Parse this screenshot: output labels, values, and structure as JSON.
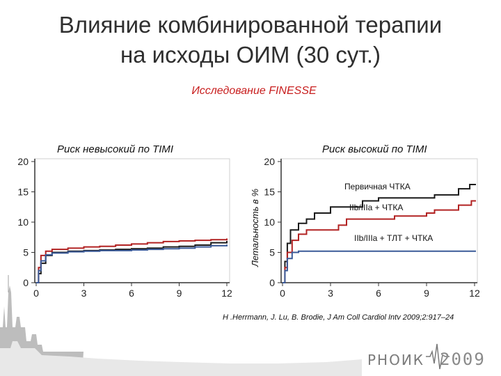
{
  "slide": {
    "title_line1": "Влияние комбинированной терапии",
    "title_line2": "на исходы ОИМ (30 сут.)",
    "subtitle": "Исследование FINESSE",
    "citation": "H .Herrmann, J. Lu, B. Brodie, J Am Coll Cardiol Intv 2009;2:917–24",
    "brand_text": "РНОИК",
    "brand_year": "2009"
  },
  "chart_data": [
    {
      "type": "line",
      "title": "Риск невысокий по TIMI",
      "xlabel": "",
      "ylabel": "",
      "xlim": [
        0,
        12
      ],
      "ylim": [
        0,
        20
      ],
      "xticks": [
        0,
        3,
        6,
        9,
        12
      ],
      "yticks": [
        0,
        5,
        10,
        15,
        20
      ],
      "series": [
        {
          "color": "#1a1a1a",
          "step": true,
          "x": [
            0,
            0.15,
            0.3,
            0.6,
            1,
            2,
            3,
            4,
            5,
            6,
            7,
            8,
            9,
            10,
            11,
            12
          ],
          "y": [
            0,
            1.5,
            3.2,
            4.5,
            5.0,
            5.2,
            5.3,
            5.4,
            5.5,
            5.6,
            5.7,
            5.9,
            6.0,
            6.2,
            6.6,
            6.9
          ]
        },
        {
          "color": "#b22222",
          "step": true,
          "x": [
            0,
            0.15,
            0.3,
            0.6,
            1,
            2,
            3,
            4,
            5,
            6,
            7,
            8,
            9,
            10,
            11,
            12
          ],
          "y": [
            0,
            2.5,
            4.5,
            5.2,
            5.5,
            5.7,
            5.9,
            6.0,
            6.2,
            6.4,
            6.6,
            6.8,
            6.9,
            7.0,
            7.1,
            7.3
          ]
        },
        {
          "color": "#3a5a98",
          "step": true,
          "x": [
            0,
            0.15,
            0.3,
            0.6,
            1,
            2,
            3,
            4,
            5,
            6,
            7,
            8,
            9,
            10,
            11,
            12
          ],
          "y": [
            0,
            2.0,
            3.6,
            4.6,
            4.9,
            5.1,
            5.2,
            5.3,
            5.3,
            5.4,
            5.5,
            5.6,
            5.7,
            5.9,
            6.1,
            6.3
          ]
        }
      ]
    },
    {
      "type": "line",
      "title": "Риск высокий по TIMI",
      "xlabel": "",
      "ylabel": "Летальность в %",
      "xlim": [
        0,
        12
      ],
      "ylim": [
        0,
        20
      ],
      "xticks": [
        0,
        3,
        6,
        9,
        12
      ],
      "yticks": [
        0,
        5,
        10,
        15,
        20
      ],
      "series": [
        {
          "name": "Первичная ЧТКА",
          "color": "#1a1a1a",
          "step": true,
          "x": [
            0,
            0.15,
            0.3,
            0.5,
            1,
            1.5,
            2,
            3,
            4.7,
            5,
            6,
            9.2,
            9.5,
            10.5,
            11,
            11.7,
            12.2
          ],
          "y": [
            0,
            3.5,
            6.5,
            8.7,
            9.8,
            10.5,
            11.5,
            12.5,
            12.5,
            13.5,
            14.0,
            14.0,
            14.5,
            14.5,
            15.5,
            16.2,
            16.2
          ]
        },
        {
          "name": "IIb/IIIa + ЧТКА",
          "color": "#b22222",
          "step": true,
          "x": [
            0,
            0.15,
            0.3,
            0.6,
            1,
            1.5,
            3,
            3.5,
            4,
            6,
            7,
            9,
            9.5,
            10.5,
            11,
            11.8,
            12.2
          ],
          "y": [
            0,
            2.5,
            5.0,
            7.0,
            8.0,
            8.7,
            8.7,
            9.5,
            10.5,
            10.5,
            11.0,
            11.5,
            12.0,
            12.0,
            12.8,
            13.5,
            13.5
          ]
        },
        {
          "name": "IIb/IIIa + ТЛТ + ЧТКА",
          "color": "#3a5a98",
          "step": true,
          "x": [
            0,
            0.15,
            0.3,
            0.6,
            1,
            12.2
          ],
          "y": [
            0,
            2.0,
            4.0,
            5.0,
            5.2,
            5.2
          ]
        }
      ]
    }
  ]
}
